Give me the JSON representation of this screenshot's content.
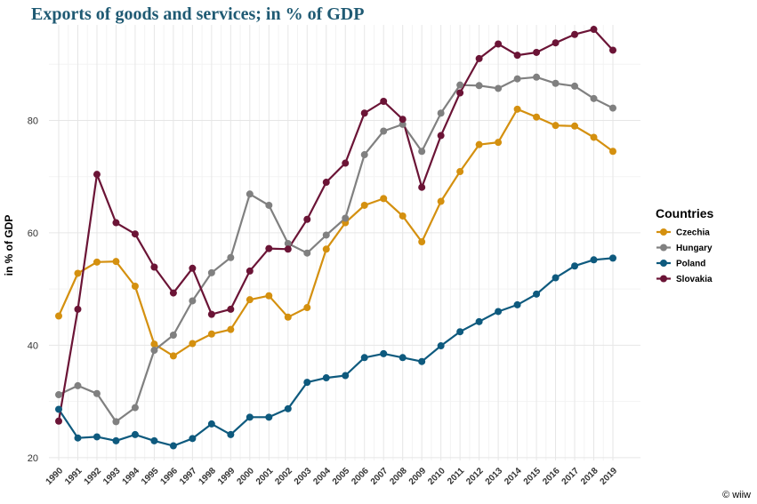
{
  "chart_data": {
    "type": "line",
    "title": "Exports of goods and services; in % of GDP",
    "xlabel": "",
    "ylabel": "in % of GDP",
    "ylim": [
      19.5,
      97
    ],
    "y_ticks": [
      20,
      40,
      60,
      80
    ],
    "grid": true,
    "legend": {
      "title": "Countries",
      "placement": "right"
    },
    "categories": [
      "1990",
      "1991",
      "1992",
      "1993",
      "1994",
      "1995",
      "1996",
      "1997",
      "1998",
      "1999",
      "2000",
      "2001",
      "2002",
      "2003",
      "2004",
      "2005",
      "2006",
      "2007",
      "2008",
      "2009",
      "2010",
      "2011",
      "2012",
      "2013",
      "2014",
      "2015",
      "2016",
      "2017",
      "2018",
      "2019"
    ],
    "series": [
      {
        "name": "Czechia",
        "color": "#d4900f",
        "values": [
          45.2,
          52.8,
          54.8,
          54.9,
          50.5,
          40.2,
          38.1,
          40.3,
          42.0,
          42.8,
          48.1,
          48.8,
          45.0,
          46.7,
          57.1,
          61.8,
          64.9,
          66.1,
          63.0,
          58.4,
          65.6,
          70.9,
          75.7,
          76.1,
          82.0,
          80.6,
          79.1,
          79.0,
          77.0,
          74.5
        ]
      },
      {
        "name": "Hungary",
        "color": "#808080",
        "values": [
          31.2,
          32.8,
          31.4,
          26.4,
          28.9,
          39.1,
          41.8,
          47.9,
          52.9,
          55.6,
          66.9,
          64.9,
          58.1,
          56.4,
          59.6,
          62.6,
          73.9,
          78.1,
          79.3,
          74.5,
          81.3,
          86.3,
          86.2,
          85.7,
          87.4,
          87.7,
          86.6,
          86.1,
          83.9,
          82.2
        ]
      },
      {
        "name": "Poland",
        "color": "#0e5a7e",
        "values": [
          28.6,
          23.5,
          23.7,
          23.0,
          24.1,
          23.0,
          22.1,
          23.4,
          26.0,
          24.1,
          27.2,
          27.2,
          28.7,
          33.4,
          34.2,
          34.6,
          37.8,
          38.5,
          37.8,
          37.1,
          39.9,
          42.4,
          44.2,
          46.0,
          47.2,
          49.1,
          52.0,
          54.1,
          55.2,
          55.5
        ]
      },
      {
        "name": "Slovakia",
        "color": "#6b1436",
        "values": [
          26.5,
          46.4,
          70.4,
          61.8,
          59.8,
          53.9,
          49.3,
          53.7,
          45.5,
          46.4,
          53.2,
          57.2,
          57.1,
          62.4,
          69.0,
          72.4,
          81.3,
          83.4,
          80.2,
          68.1,
          77.3,
          84.9,
          91.0,
          93.6,
          91.6,
          92.1,
          93.8,
          95.3,
          96.2,
          92.5
        ]
      }
    ]
  },
  "caption": "© wiiw"
}
